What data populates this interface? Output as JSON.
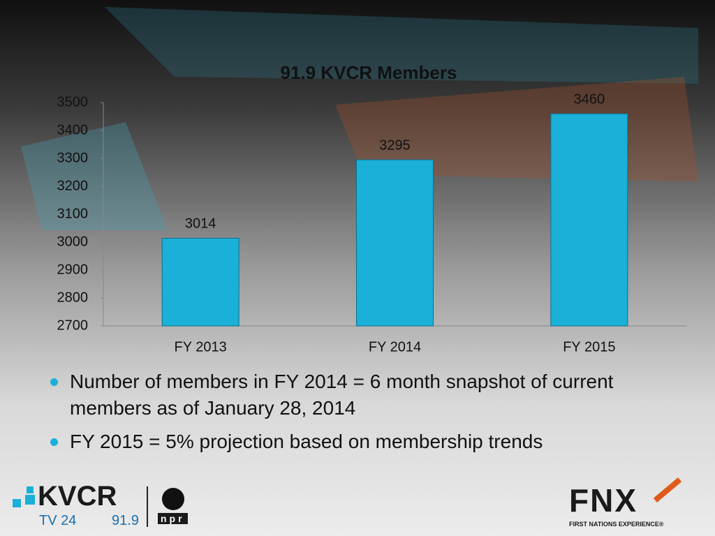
{
  "chart_data": {
    "type": "bar",
    "title": "91.9 KVCR Members",
    "categories": [
      "FY 2013",
      "FY 2014",
      "FY 2015"
    ],
    "values": [
      3014,
      3295,
      3460
    ],
    "color": "#1ab0d8",
    "ylim": [
      2700,
      3500
    ],
    "yticks": [
      2700,
      2800,
      2900,
      3000,
      3100,
      3200,
      3300,
      3400,
      3500
    ],
    "grid": false
  },
  "bullets": [
    "Number of members in FY 2014 = 6 month snapshot of current members as of January 28, 2014",
    "FY 2015 = 5% projection based on membership trends"
  ],
  "logos": {
    "kvcr": "KVCR",
    "tv": "TV 24",
    "radio": "91.9",
    "npr": "npr",
    "fnx": "FNX",
    "fnx_tagline": "FIRST NATIONS EXPERIENCE®"
  }
}
